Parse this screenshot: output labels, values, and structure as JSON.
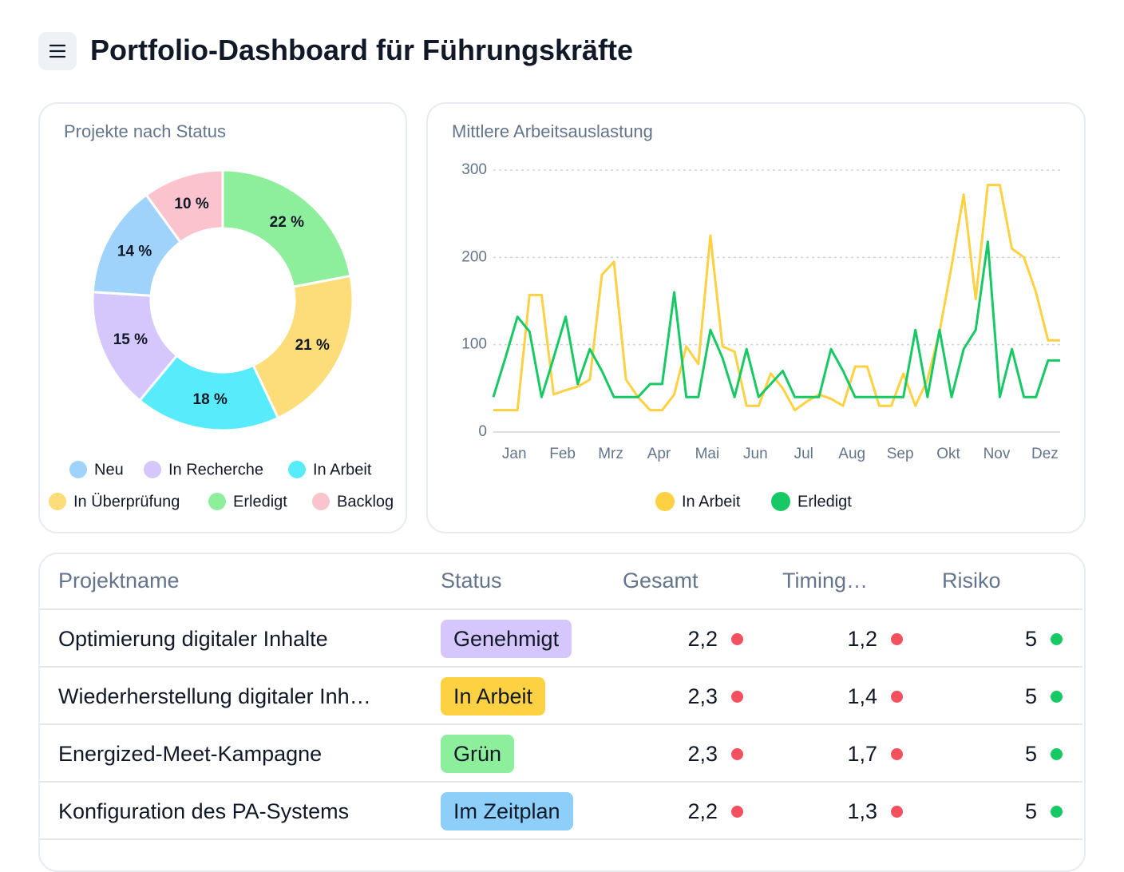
{
  "header": {
    "title": "Portfolio-Dashboard für Führungskräfte"
  },
  "chart_data": [
    {
      "type": "pie",
      "title": "Projekte nach Status",
      "categories": [
        "Neu",
        "In Recherche",
        "In Arbeit",
        "In Überprüfung",
        "Erledigt",
        "Backlog"
      ],
      "values": [
        14,
        15,
        18,
        21,
        22,
        10
      ],
      "value_labels": [
        "14 %",
        "15 %",
        "18 %",
        "21 %",
        "22 %",
        "10 %"
      ],
      "colors": [
        "#9fd3fb",
        "#d5c6fb",
        "#58ebfb",
        "#fddc7a",
        "#8def9b",
        "#fbc3cd"
      ]
    },
    {
      "type": "line",
      "title": "Mittlere Arbeitsauslastung",
      "categories": [
        null,
        null,
        "Jan",
        null,
        null,
        null,
        "Feb",
        null,
        null,
        null,
        "Mrz",
        null,
        null,
        null,
        "Apr",
        null,
        null,
        null,
        "Mai",
        null,
        null,
        null,
        "Jun",
        null,
        null,
        null,
        "Jul",
        null,
        null,
        null,
        "Aug",
        null,
        null,
        null,
        "Sep",
        null,
        null,
        null,
        "Okt",
        null,
        null,
        null,
        "Nov",
        null,
        null,
        null,
        "Dez",
        null
      ],
      "ylim": [
        0,
        300
      ],
      "yticks": [
        0,
        100,
        200,
        300
      ],
      "grid": true,
      "series": [
        {
          "name": "In Arbeit",
          "color": "#fdd142",
          "values": [
            25,
            25,
            25,
            157,
            157,
            43,
            48,
            52,
            60,
            180,
            195,
            60,
            40,
            25,
            25,
            43,
            98,
            78,
            225,
            98,
            92,
            30,
            30,
            67,
            50,
            25,
            35,
            43,
            38,
            30,
            75,
            75,
            30,
            30,
            67,
            30,
            60,
            115,
            190,
            272,
            152,
            283,
            283,
            210,
            200,
            160,
            105,
            105
          ]
        },
        {
          "name": "Erledigt",
          "color": "#17c964",
          "values": [
            40,
            85,
            132,
            115,
            40,
            85,
            132,
            55,
            95,
            70,
            40,
            40,
            40,
            55,
            55,
            160,
            40,
            40,
            117,
            85,
            40,
            95,
            40,
            55,
            70,
            40,
            40,
            40,
            95,
            70,
            40,
            40,
            40,
            40,
            40,
            117,
            40,
            117,
            40,
            95,
            117,
            218,
            40,
            95,
            40,
            40,
            82,
            82
          ]
        }
      ]
    }
  ],
  "table": {
    "columns": [
      "Projektname",
      "Status",
      "Gesamt",
      "Timing…",
      "Risiko"
    ],
    "rows": [
      {
        "name": "Optimierung digitaler Inhalte",
        "status": "Genehmigt",
        "status_color": "#d5c6fb",
        "gesamt": "2,2",
        "gesamt_dot": "#f4505f",
        "timing": "1,2",
        "timing_dot": "#f4505f",
        "risiko": "5",
        "risiko_dot": "#17c964"
      },
      {
        "name": "Wiederherstellung digitaler Inh…",
        "status": "In Arbeit",
        "status_color": "#fdd142",
        "gesamt": "2,3",
        "gesamt_dot": "#f4505f",
        "timing": "1,4",
        "timing_dot": "#f4505f",
        "risiko": "5",
        "risiko_dot": "#17c964"
      },
      {
        "name": "Energized-Meet-Kampagne",
        "status": "Grün",
        "status_color": "#8def9b",
        "gesamt": "2,3",
        "gesamt_dot": "#f4505f",
        "timing": "1,7",
        "timing_dot": "#f4505f",
        "risiko": "5",
        "risiko_dot": "#17c964"
      },
      {
        "name": "Konfiguration des PA-Systems",
        "status": "Im Zeitplan",
        "status_color": "#8dcff9",
        "gesamt": "2,2",
        "gesamt_dot": "#f4505f",
        "timing": "1,3",
        "timing_dot": "#f4505f",
        "risiko": "5",
        "risiko_dot": "#17c964"
      }
    ]
  }
}
